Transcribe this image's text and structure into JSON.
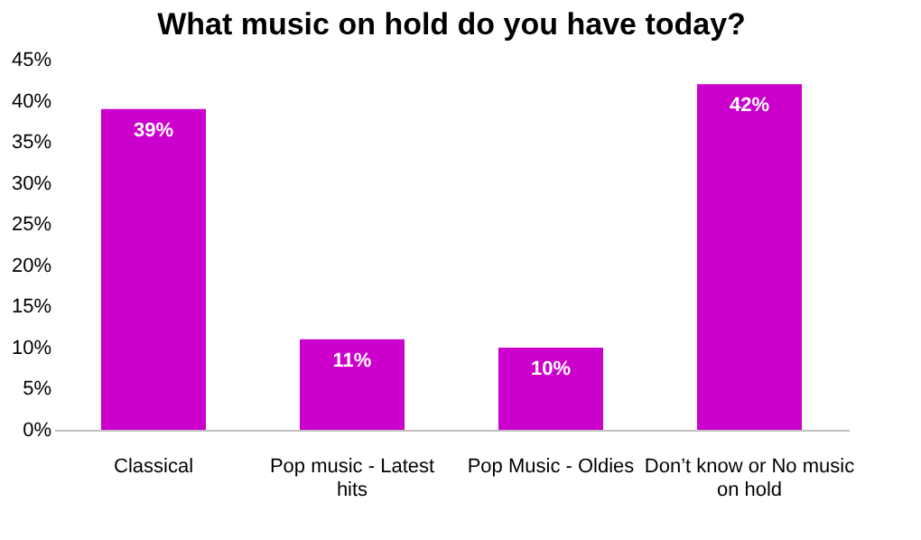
{
  "chart_data": {
    "type": "bar",
    "title": "What music on hold do you have today?",
    "categories": [
      "Classical",
      "Pop music - Latest hits",
      "Pop Music - Oldies",
      "Don’t know or No music on hold"
    ],
    "values": [
      39,
      11,
      10,
      42
    ],
    "value_labels": [
      "39%",
      "11%",
      "10%",
      "42%"
    ],
    "color": "#cc00cc",
    "ylim": [
      0,
      45
    ],
    "yticks": [
      {
        "value": 0,
        "label": "0%"
      },
      {
        "value": 5,
        "label": "5%"
      },
      {
        "value": 10,
        "label": "10%"
      },
      {
        "value": 15,
        "label": "15%"
      },
      {
        "value": 20,
        "label": "20%"
      },
      {
        "value": 25,
        "label": "25%"
      },
      {
        "value": 30,
        "label": "30%"
      },
      {
        "value": 35,
        "label": "35%"
      },
      {
        "value": 40,
        "label": "40%"
      },
      {
        "value": 45,
        "label": "45%"
      }
    ],
    "grid": false
  }
}
